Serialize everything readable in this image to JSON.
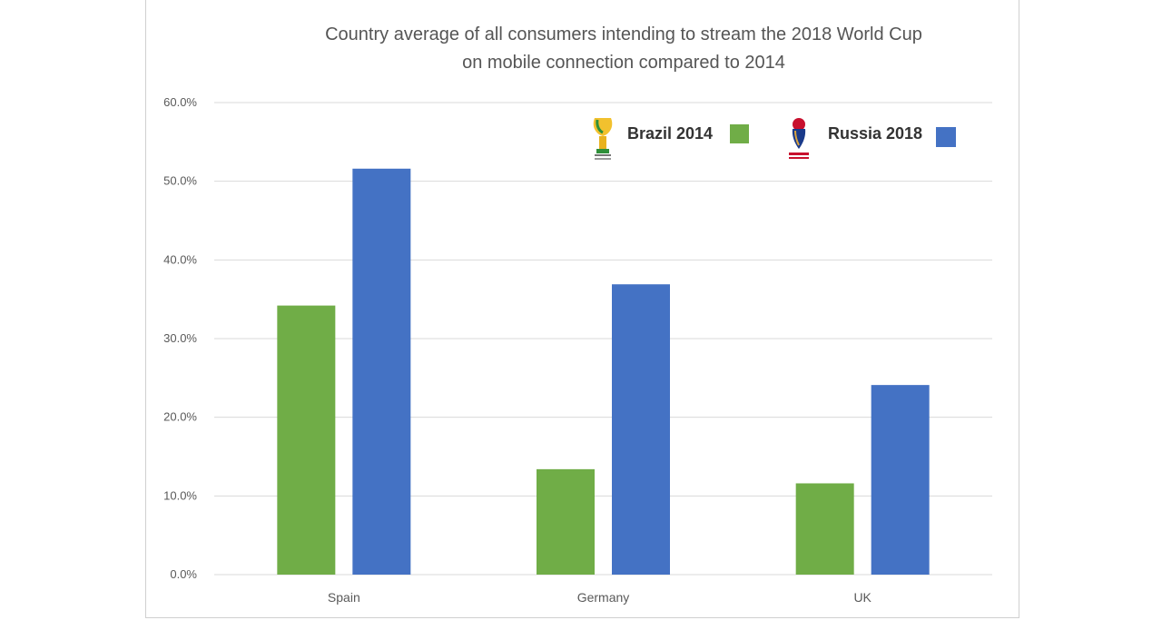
{
  "chart_data": {
    "type": "bar",
    "title": [
      "Country average of all consumers intending to stream the 2018 World Cup",
      "on mobile connection compared to 2014"
    ],
    "categories": [
      "Spain",
      "Germany",
      "UK"
    ],
    "series": [
      {
        "name": "Brazil 2014",
        "values": [
          34.2,
          13.4,
          11.6
        ],
        "color": "#70ad47"
      },
      {
        "name": "Russia 2018",
        "values": [
          51.6,
          36.9,
          24.1
        ],
        "color": "#4472c4"
      }
    ],
    "ylim": [
      0,
      60
    ],
    "yticks": [
      "0.0%",
      "10.0%",
      "20.0%",
      "30.0%",
      "40.0%",
      "50.0%",
      "60.0%"
    ],
    "grid": true,
    "legend_position": "top-right",
    "legend_icons": [
      "brazil-2014-logo-icon",
      "russia-2018-logo-icon"
    ]
  }
}
